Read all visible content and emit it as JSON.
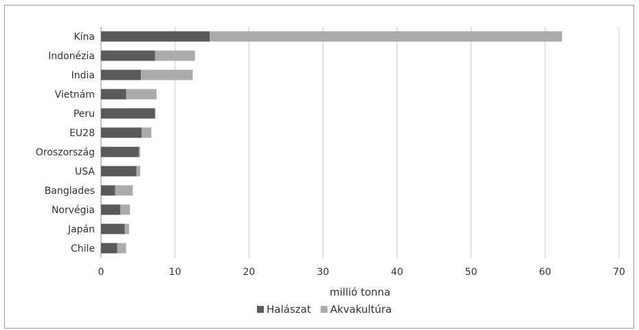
{
  "chart_data": {
    "type": "bar",
    "orientation": "horizontal",
    "stacked": true,
    "categories": [
      "Kína",
      "Indonézia",
      "India",
      "Vietnám",
      "Peru",
      "EU28",
      "Oroszország",
      "USA",
      "Banglades",
      "Norvégia",
      "Japán",
      "Chile"
    ],
    "series": [
      {
        "name": "Halászat",
        "color": "#5a5a5a",
        "values": [
          14.7,
          7.3,
          5.4,
          3.4,
          7.3,
          5.5,
          5.1,
          4.8,
          1.9,
          2.6,
          3.2,
          2.2
        ]
      },
      {
        "name": "Akvakultúra",
        "color": "#ababab",
        "values": [
          47.6,
          5.4,
          7.0,
          4.1,
          0.05,
          1.3,
          0.2,
          0.5,
          2.4,
          1.3,
          0.6,
          1.2
        ]
      }
    ],
    "xlabel": "millió tonna",
    "ylabel": "",
    "xlim": [
      0,
      70
    ],
    "xticks": [
      0,
      10,
      20,
      30,
      40,
      50,
      60,
      70
    ],
    "grid": "vertical",
    "legend": "bottom"
  }
}
